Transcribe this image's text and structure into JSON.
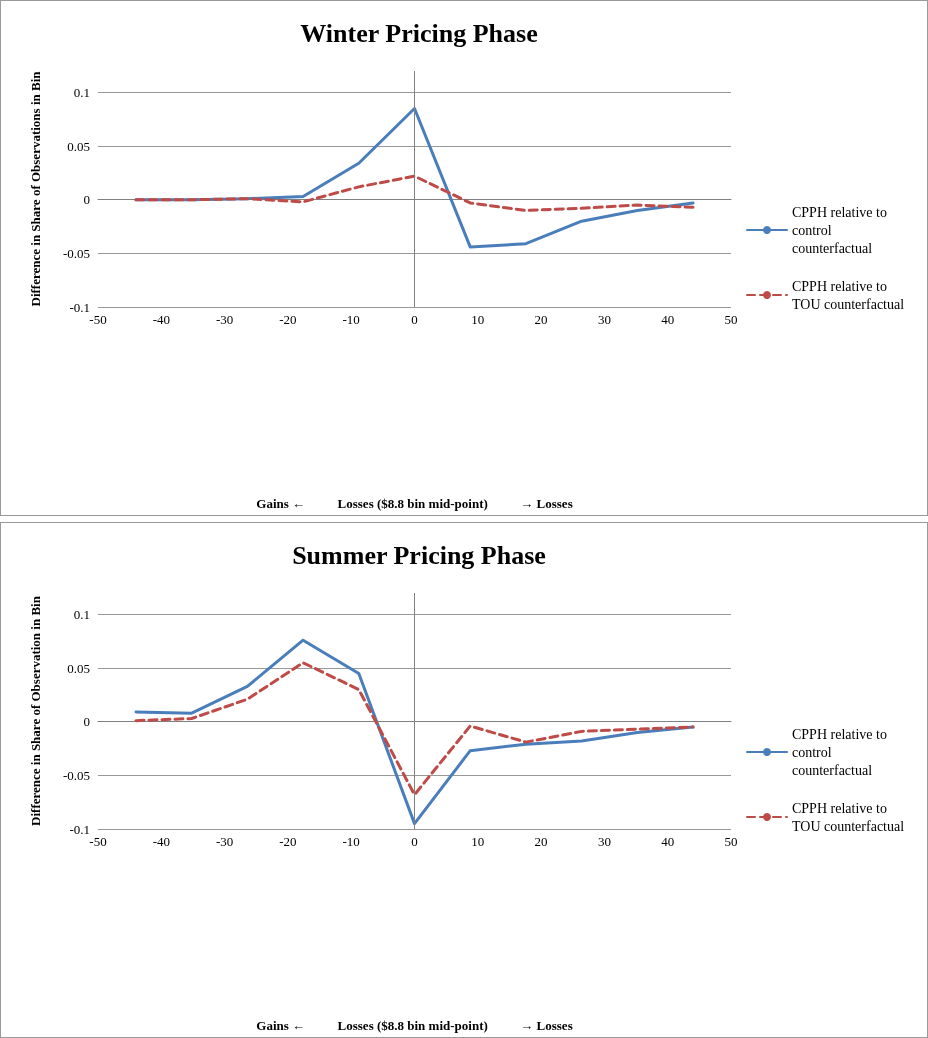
{
  "chart_data": [
    {
      "type": "line",
      "title": "Winter Pricing Phase",
      "xlabel": "Gains ←          Losses ($8.8 bin mid-point)          → Losses",
      "ylabel": "Difference in Share of Observations in Bin",
      "x": [
        -44,
        -35.2,
        -26.4,
        -17.6,
        -8.8,
        0,
        8.8,
        17.6,
        26.4,
        35.2,
        44
      ],
      "series": [
        {
          "name": "CPPH relative to control counterfactual",
          "color": "#4a7ebb",
          "line_style": "solid",
          "values": [
            0,
            0,
            0.001,
            0.003,
            0.034,
            0.085,
            -0.044,
            -0.041,
            -0.02,
            -0.01,
            -0.003
          ]
        },
        {
          "name": "CPPH relative to TOU counterfactual",
          "color": "#be4b48",
          "line_style": "dashed",
          "values": [
            0,
            0,
            0.001,
            -0.002,
            0.012,
            0.022,
            -0.003,
            -0.01,
            -0.008,
            -0.005,
            -0.007
          ]
        }
      ],
      "xlim": [
        -50,
        50
      ],
      "xticks": [
        -50,
        -40,
        -30,
        -20,
        -10,
        0,
        10,
        20,
        30,
        40,
        50
      ],
      "ylim": [
        -0.1,
        0.12
      ],
      "yticks": [
        -0.1,
        -0.05,
        0,
        0.05,
        0.1
      ],
      "ref_lines": [
        {
          "axis": "x",
          "value": 0,
          "color": "#808080"
        }
      ],
      "grid": "y",
      "legend": "right",
      "marker": "none"
    },
    {
      "type": "line",
      "title": "Summer Pricing Phase",
      "xlabel": "Gains ←          Losses ($8.8 bin mid-point)          → Losses",
      "ylabel": "Difference in Share of Observation in Bin",
      "x": [
        -44,
        -35.2,
        -26.4,
        -17.6,
        -8.8,
        0,
        8.8,
        17.6,
        26.4,
        35.2,
        44
      ],
      "series": [
        {
          "name": "CPPH relative to control counterfactual",
          "color": "#4a7ebb",
          "line_style": "solid",
          "values": [
            0.009,
            0.008,
            0.033,
            0.076,
            0.045,
            -0.095,
            -0.027,
            -0.021,
            -0.018,
            -0.01,
            -0.005
          ]
        },
        {
          "name": "CPPH relative to TOU counterfactual",
          "color": "#be4b48",
          "line_style": "dashed",
          "values": [
            0.001,
            0.003,
            0.021,
            0.055,
            0.03,
            -0.068,
            -0.004,
            -0.019,
            -0.009,
            -0.007,
            -0.005
          ]
        }
      ],
      "xlim": [
        -50,
        50
      ],
      "xticks": [
        -50,
        -40,
        -30,
        -20,
        -10,
        0,
        10,
        20,
        30,
        40,
        50
      ],
      "ylim": [
        -0.1,
        0.12
      ],
      "yticks": [
        -0.1,
        -0.05,
        0,
        0.05,
        0.1
      ],
      "ref_lines": [
        {
          "axis": "x",
          "value": 0,
          "color": "#808080"
        }
      ],
      "grid": "y",
      "legend": "right",
      "marker": "none"
    }
  ]
}
